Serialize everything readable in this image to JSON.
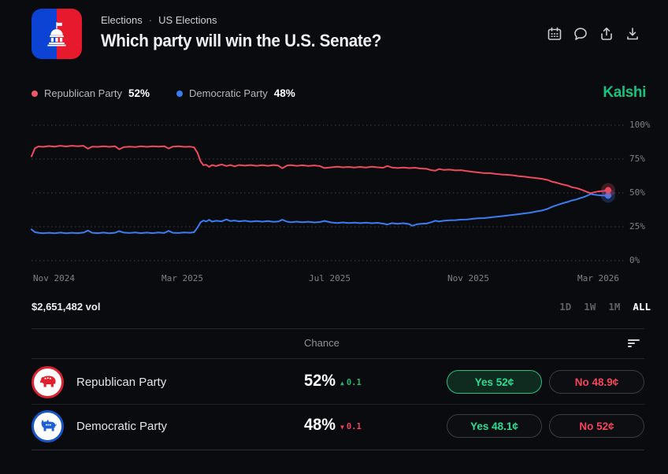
{
  "header": {
    "breadcrumb": {
      "category": "Elections",
      "separator": "·",
      "subcategory": "US Elections"
    },
    "title": "Which party will win the U.S. Senate?",
    "icons": [
      "calendar-icon",
      "comment-icon",
      "share-icon",
      "download-icon"
    ]
  },
  "legend": {
    "items": [
      {
        "label": "Republican Party",
        "value": "52%",
        "color": "#ee4a5f"
      },
      {
        "label": "Democratic Party",
        "value": "48%",
        "color": "#3a7df2"
      }
    ]
  },
  "brand": {
    "wordmark": "Kalshi",
    "color": "#17c27f"
  },
  "chart_data": {
    "type": "line",
    "title": "Which party will win the U.S. Senate?",
    "grid": "dotted-horizontal",
    "legend_position": "top-left",
    "x_axis": {
      "ticks": [
        "Nov 2024",
        "Mar 2025",
        "Jul 2025",
        "Nov 2025",
        "Mar 2026"
      ]
    },
    "y_axis": {
      "ticks": [
        "100%",
        "75%",
        "50%",
        "25%",
        "0%"
      ],
      "range": [
        0,
        100
      ]
    },
    "series": [
      {
        "name": "Democratic Party",
        "color": "#3a7df2",
        "current": 48,
        "points": [
          [
            0,
            23
          ],
          [
            0.006,
            21
          ],
          [
            0.012,
            20.6
          ],
          [
            0.02,
            20.2
          ],
          [
            0.03,
            20.6
          ],
          [
            0.04,
            20.2
          ],
          [
            0.05,
            20.7
          ],
          [
            0.06,
            20.2
          ],
          [
            0.07,
            20.6
          ],
          [
            0.08,
            20.3
          ],
          [
            0.09,
            20.7
          ],
          [
            0.098,
            22.2
          ],
          [
            0.105,
            20.6
          ],
          [
            0.115,
            20.3
          ],
          [
            0.125,
            20.7
          ],
          [
            0.135,
            20.2
          ],
          [
            0.145,
            20.6
          ],
          [
            0.152,
            21.8
          ],
          [
            0.16,
            20.7
          ],
          [
            0.17,
            20.4
          ],
          [
            0.18,
            20.8
          ],
          [
            0.19,
            20.3
          ],
          [
            0.2,
            20.7
          ],
          [
            0.21,
            20.3
          ],
          [
            0.22,
            20.8
          ],
          [
            0.23,
            20.4
          ],
          [
            0.238,
            22
          ],
          [
            0.245,
            20.6
          ],
          [
            0.255,
            20.4
          ],
          [
            0.265,
            20.8
          ],
          [
            0.275,
            20.6
          ],
          [
            0.282,
            21
          ],
          [
            0.288,
            24.5
          ],
          [
            0.293,
            28.2
          ],
          [
            0.298,
            29.6
          ],
          [
            0.303,
            28.9
          ],
          [
            0.308,
            30.2
          ],
          [
            0.313,
            28.8
          ],
          [
            0.32,
            29.4
          ],
          [
            0.33,
            29
          ],
          [
            0.338,
            30.4
          ],
          [
            0.345,
            29.2
          ],
          [
            0.352,
            29.6
          ],
          [
            0.36,
            29
          ],
          [
            0.37,
            29.4
          ],
          [
            0.38,
            28.8
          ],
          [
            0.39,
            29.2
          ],
          [
            0.4,
            28.8
          ],
          [
            0.41,
            29.2
          ],
          [
            0.42,
            28.6
          ],
          [
            0.428,
            28.9
          ],
          [
            0.435,
            30.2
          ],
          [
            0.443,
            28.8
          ],
          [
            0.45,
            28.4
          ],
          [
            0.46,
            28.8
          ],
          [
            0.47,
            28.3
          ],
          [
            0.48,
            28.7
          ],
          [
            0.49,
            28.2
          ],
          [
            0.5,
            28.5
          ],
          [
            0.508,
            29.3
          ],
          [
            0.52,
            28.2
          ],
          [
            0.53,
            27.8
          ],
          [
            0.54,
            28.2
          ],
          [
            0.55,
            27.8
          ],
          [
            0.56,
            28.1
          ],
          [
            0.57,
            27.7
          ],
          [
            0.58,
            28
          ],
          [
            0.59,
            27.6
          ],
          [
            0.6,
            27.9
          ],
          [
            0.61,
            27.3
          ],
          [
            0.617,
            26.7
          ],
          [
            0.625,
            27.7
          ],
          [
            0.635,
            27.2
          ],
          [
            0.645,
            27.6
          ],
          [
            0.655,
            27
          ],
          [
            0.66,
            25.7
          ],
          [
            0.668,
            26.8
          ],
          [
            0.675,
            27.2
          ],
          [
            0.685,
            27.4
          ],
          [
            0.693,
            28.3
          ],
          [
            0.7,
            29.4
          ],
          [
            0.707,
            28.9
          ],
          [
            0.715,
            29.4
          ],
          [
            0.725,
            29.8
          ],
          [
            0.735,
            29.9
          ],
          [
            0.745,
            30.3
          ],
          [
            0.755,
            30.4
          ],
          [
            0.765,
            30.9
          ],
          [
            0.775,
            31.3
          ],
          [
            0.785,
            31.4
          ],
          [
            0.795,
            31.9
          ],
          [
            0.805,
            32.3
          ],
          [
            0.815,
            32.8
          ],
          [
            0.825,
            33.3
          ],
          [
            0.835,
            33.8
          ],
          [
            0.845,
            34.3
          ],
          [
            0.855,
            34.9
          ],
          [
            0.865,
            35.4
          ],
          [
            0.875,
            36.3
          ],
          [
            0.885,
            37
          ],
          [
            0.895,
            38.2
          ],
          [
            0.902,
            39.6
          ],
          [
            0.91,
            40.8
          ],
          [
            0.92,
            42.2
          ],
          [
            0.93,
            43.4
          ],
          [
            0.937,
            44.4
          ],
          [
            0.945,
            45.2
          ],
          [
            0.952,
            46.2
          ],
          [
            0.958,
            47
          ],
          [
            0.964,
            48
          ],
          [
            0.97,
            49.2
          ],
          [
            0.975,
            48.8
          ],
          [
            0.982,
            48.4
          ],
          [
            0.99,
            48.1
          ],
          [
            1,
            48
          ]
        ]
      },
      {
        "name": "Republican Party",
        "color": "#ee4a5f",
        "current": 52,
        "points": [
          [
            0,
            77
          ],
          [
            0.006,
            83
          ],
          [
            0.012,
            84.3
          ],
          [
            0.02,
            84
          ],
          [
            0.03,
            84.6
          ],
          [
            0.04,
            84.2
          ],
          [
            0.05,
            84.8
          ],
          [
            0.06,
            84.3
          ],
          [
            0.07,
            84.8
          ],
          [
            0.08,
            84.4
          ],
          [
            0.09,
            84.8
          ],
          [
            0.098,
            82.6
          ],
          [
            0.105,
            84.2
          ],
          [
            0.115,
            84
          ],
          [
            0.125,
            84.5
          ],
          [
            0.135,
            84
          ],
          [
            0.145,
            84.4
          ],
          [
            0.152,
            82.2
          ],
          [
            0.16,
            83.8
          ],
          [
            0.17,
            84.2
          ],
          [
            0.18,
            83.9
          ],
          [
            0.19,
            84.4
          ],
          [
            0.2,
            84
          ],
          [
            0.21,
            84.5
          ],
          [
            0.22,
            84.1
          ],
          [
            0.23,
            84.5
          ],
          [
            0.238,
            82.8
          ],
          [
            0.245,
            84.2
          ],
          [
            0.255,
            84.4
          ],
          [
            0.265,
            84
          ],
          [
            0.275,
            84.2
          ],
          [
            0.282,
            83.6
          ],
          [
            0.288,
            79.5
          ],
          [
            0.293,
            73.5
          ],
          [
            0.298,
            70.5
          ],
          [
            0.303,
            70.8
          ],
          [
            0.308,
            69.2
          ],
          [
            0.313,
            70.6
          ],
          [
            0.32,
            69.8
          ],
          [
            0.33,
            71
          ],
          [
            0.338,
            69.9
          ],
          [
            0.345,
            70.6
          ],
          [
            0.352,
            69.6
          ],
          [
            0.36,
            70.6
          ],
          [
            0.37,
            70.1
          ],
          [
            0.38,
            70.6
          ],
          [
            0.39,
            70
          ],
          [
            0.4,
            70.5
          ],
          [
            0.41,
            70
          ],
          [
            0.42,
            70.6
          ],
          [
            0.428,
            70.1
          ],
          [
            0.435,
            68.2
          ],
          [
            0.443,
            70.2
          ],
          [
            0.45,
            70.5
          ],
          [
            0.46,
            70
          ],
          [
            0.47,
            70.4
          ],
          [
            0.48,
            69.9
          ],
          [
            0.49,
            70.3
          ],
          [
            0.5,
            69.8
          ],
          [
            0.508,
            68.4
          ],
          [
            0.52,
            68.9
          ],
          [
            0.53,
            69.3
          ],
          [
            0.54,
            68.9
          ],
          [
            0.55,
            69.2
          ],
          [
            0.56,
            68.8
          ],
          [
            0.57,
            69.2
          ],
          [
            0.58,
            68.8
          ],
          [
            0.59,
            69.3
          ],
          [
            0.6,
            68.9
          ],
          [
            0.61,
            68.6
          ],
          [
            0.617,
            69.9
          ],
          [
            0.625,
            68.8
          ],
          [
            0.635,
            68.4
          ],
          [
            0.645,
            68.8
          ],
          [
            0.655,
            68.3
          ],
          [
            0.665,
            68.6
          ],
          [
            0.675,
            68
          ],
          [
            0.685,
            67.8
          ],
          [
            0.693,
            66.8
          ],
          [
            0.7,
            66.4
          ],
          [
            0.707,
            67.6
          ],
          [
            0.715,
            67
          ],
          [
            0.725,
            67.2
          ],
          [
            0.735,
            66.6
          ],
          [
            0.745,
            66.8
          ],
          [
            0.755,
            66.1
          ],
          [
            0.765,
            65.6
          ],
          [
            0.775,
            65.1
          ],
          [
            0.785,
            64.6
          ],
          [
            0.795,
            64.6
          ],
          [
            0.805,
            64
          ],
          [
            0.815,
            63.6
          ],
          [
            0.825,
            63.4
          ],
          [
            0.835,
            63
          ],
          [
            0.845,
            62.4
          ],
          [
            0.855,
            62
          ],
          [
            0.865,
            61.4
          ],
          [
            0.875,
            61
          ],
          [
            0.885,
            60.4
          ],
          [
            0.895,
            59.6
          ],
          [
            0.902,
            58.4
          ],
          [
            0.91,
            57.6
          ],
          [
            0.92,
            56.4
          ],
          [
            0.93,
            55.4
          ],
          [
            0.937,
            54.2
          ],
          [
            0.945,
            53.6
          ],
          [
            0.952,
            52.6
          ],
          [
            0.958,
            51.6
          ],
          [
            0.964,
            50.6
          ],
          [
            0.97,
            49.8
          ],
          [
            0.975,
            50.4
          ],
          [
            0.982,
            51
          ],
          [
            0.99,
            51.4
          ],
          [
            1,
            52
          ]
        ]
      }
    ]
  },
  "volume": "$2,651,482 vol",
  "ranges": {
    "options": [
      "1D",
      "1W",
      "1M",
      "ALL"
    ],
    "selected": "ALL"
  },
  "table": {
    "chance_header": "Chance",
    "rows": [
      {
        "name": "Republican Party",
        "chance": "52%",
        "delta_arrow": "▲",
        "delta_value": "0.1",
        "yes_label": "Yes 52¢",
        "no_label": "No 48.9¢"
      },
      {
        "name": "Democratic Party",
        "chance": "48%",
        "delta_arrow": "▼",
        "delta_value": "0.1",
        "yes_label": "Yes 48.1¢",
        "no_label": "No 52¢"
      }
    ]
  }
}
